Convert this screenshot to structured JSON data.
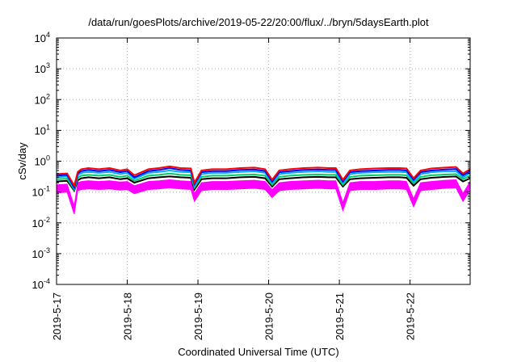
{
  "chart_data": {
    "type": "area",
    "title": "/data/run/goesPlots/archive/2019-05-22/20:00/flux/../bryn/5daysEarth.plot",
    "xlabel": "Coordinated Universal Time (UTC)",
    "ylabel": "cSv/day",
    "yscale": "log",
    "ylim": [
      0.0001,
      10000
    ],
    "xlim": [
      0,
      5.85
    ],
    "grid": true,
    "legend": "none",
    "x_tick_values": [
      0,
      1,
      2,
      3,
      4,
      5
    ],
    "x_tick_labels": [
      "2019-5-17",
      "2019-5-18",
      "2019-5-19",
      "2019-5-20",
      "2019-5-21",
      "2019-5-22"
    ],
    "y_ticks": [
      {
        "value": 0.0001,
        "base": "10",
        "exp": "-4"
      },
      {
        "value": 0.001,
        "base": "10",
        "exp": "-3"
      },
      {
        "value": 0.01,
        "base": "10",
        "exp": "-2"
      },
      {
        "value": 0.1,
        "base": "10",
        "exp": "-1"
      },
      {
        "value": 1,
        "base": "10",
        "exp": "0"
      },
      {
        "value": 10,
        "base": "10",
        "exp": "1"
      },
      {
        "value": 100,
        "base": "10",
        "exp": "2"
      },
      {
        "value": 1000,
        "base": "10",
        "exp": "3"
      },
      {
        "value": 10000,
        "base": "10",
        "exp": "4"
      }
    ],
    "x": [
      0.0,
      0.15,
      0.25,
      0.3,
      0.35,
      0.45,
      0.6,
      0.75,
      0.9,
      1.0,
      1.1,
      1.3,
      1.45,
      1.6,
      1.75,
      1.9,
      1.95,
      2.05,
      2.2,
      2.4,
      2.6,
      2.8,
      2.95,
      3.05,
      3.15,
      3.3,
      3.5,
      3.7,
      3.85,
      3.95,
      4.05,
      4.15,
      4.3,
      4.5,
      4.7,
      4.85,
      4.95,
      5.05,
      5.15,
      5.3,
      5.5,
      5.65,
      5.75,
      5.85
    ],
    "series": [
      {
        "color": "#ff0000",
        "values": [
          0.38,
          0.4,
          0.16,
          0.45,
          0.55,
          0.6,
          0.55,
          0.6,
          0.5,
          0.55,
          0.35,
          0.55,
          0.6,
          0.68,
          0.6,
          0.58,
          0.2,
          0.5,
          0.55,
          0.55,
          0.6,
          0.62,
          0.55,
          0.25,
          0.5,
          0.55,
          0.6,
          0.62,
          0.6,
          0.6,
          0.25,
          0.5,
          0.55,
          0.58,
          0.6,
          0.6,
          0.58,
          0.28,
          0.5,
          0.58,
          0.62,
          0.65,
          0.4,
          0.55
        ]
      },
      {
        "color": "#0000ff",
        "values": [
          0.34,
          0.36,
          0.14,
          0.4,
          0.48,
          0.52,
          0.48,
          0.52,
          0.44,
          0.48,
          0.3,
          0.48,
          0.52,
          0.6,
          0.52,
          0.5,
          0.18,
          0.44,
          0.48,
          0.48,
          0.52,
          0.54,
          0.48,
          0.22,
          0.44,
          0.48,
          0.52,
          0.54,
          0.52,
          0.52,
          0.22,
          0.44,
          0.48,
          0.5,
          0.52,
          0.52,
          0.5,
          0.25,
          0.44,
          0.5,
          0.54,
          0.56,
          0.35,
          0.48
        ]
      },
      {
        "color": "#00aaff",
        "values": [
          0.3,
          0.32,
          0.13,
          0.35,
          0.42,
          0.45,
          0.42,
          0.45,
          0.38,
          0.42,
          0.27,
          0.42,
          0.45,
          0.5,
          0.45,
          0.44,
          0.16,
          0.38,
          0.42,
          0.42,
          0.45,
          0.47,
          0.42,
          0.2,
          0.38,
          0.42,
          0.45,
          0.47,
          0.45,
          0.45,
          0.2,
          0.38,
          0.42,
          0.44,
          0.45,
          0.45,
          0.44,
          0.22,
          0.38,
          0.44,
          0.47,
          0.48,
          0.3,
          0.42
        ]
      },
      {
        "color": "#00cc66",
        "values": [
          0.26,
          0.27,
          0.12,
          0.29,
          0.34,
          0.36,
          0.34,
          0.36,
          0.31,
          0.34,
          0.23,
          0.34,
          0.36,
          0.4,
          0.36,
          0.35,
          0.14,
          0.31,
          0.34,
          0.34,
          0.36,
          0.37,
          0.34,
          0.17,
          0.31,
          0.34,
          0.36,
          0.37,
          0.36,
          0.36,
          0.17,
          0.31,
          0.34,
          0.35,
          0.36,
          0.36,
          0.35,
          0.19,
          0.31,
          0.35,
          0.37,
          0.38,
          0.26,
          0.34
        ]
      },
      {
        "color": "#000000",
        "values": [
          0.22,
          0.23,
          0.11,
          0.24,
          0.28,
          0.3,
          0.28,
          0.3,
          0.26,
          0.28,
          0.2,
          0.28,
          0.3,
          0.32,
          0.3,
          0.29,
          0.12,
          0.26,
          0.28,
          0.28,
          0.3,
          0.31,
          0.28,
          0.15,
          0.26,
          0.28,
          0.3,
          0.31,
          0.3,
          0.3,
          0.15,
          0.26,
          0.28,
          0.29,
          0.3,
          0.3,
          0.29,
          0.16,
          0.26,
          0.29,
          0.31,
          0.32,
          0.22,
          0.28
        ]
      },
      {
        "color": "#ff00ff",
        "values": [
          0.17,
          0.18,
          0.035,
          0.2,
          0.22,
          0.23,
          0.22,
          0.23,
          0.21,
          0.22,
          0.16,
          0.22,
          0.23,
          0.25,
          0.23,
          0.22,
          0.09,
          0.2,
          0.22,
          0.22,
          0.23,
          0.24,
          0.22,
          0.12,
          0.2,
          0.22,
          0.23,
          0.24,
          0.23,
          0.23,
          0.045,
          0.2,
          0.22,
          0.22,
          0.23,
          0.23,
          0.22,
          0.06,
          0.2,
          0.22,
          0.24,
          0.25,
          0.09,
          0.22
        ]
      }
    ]
  }
}
